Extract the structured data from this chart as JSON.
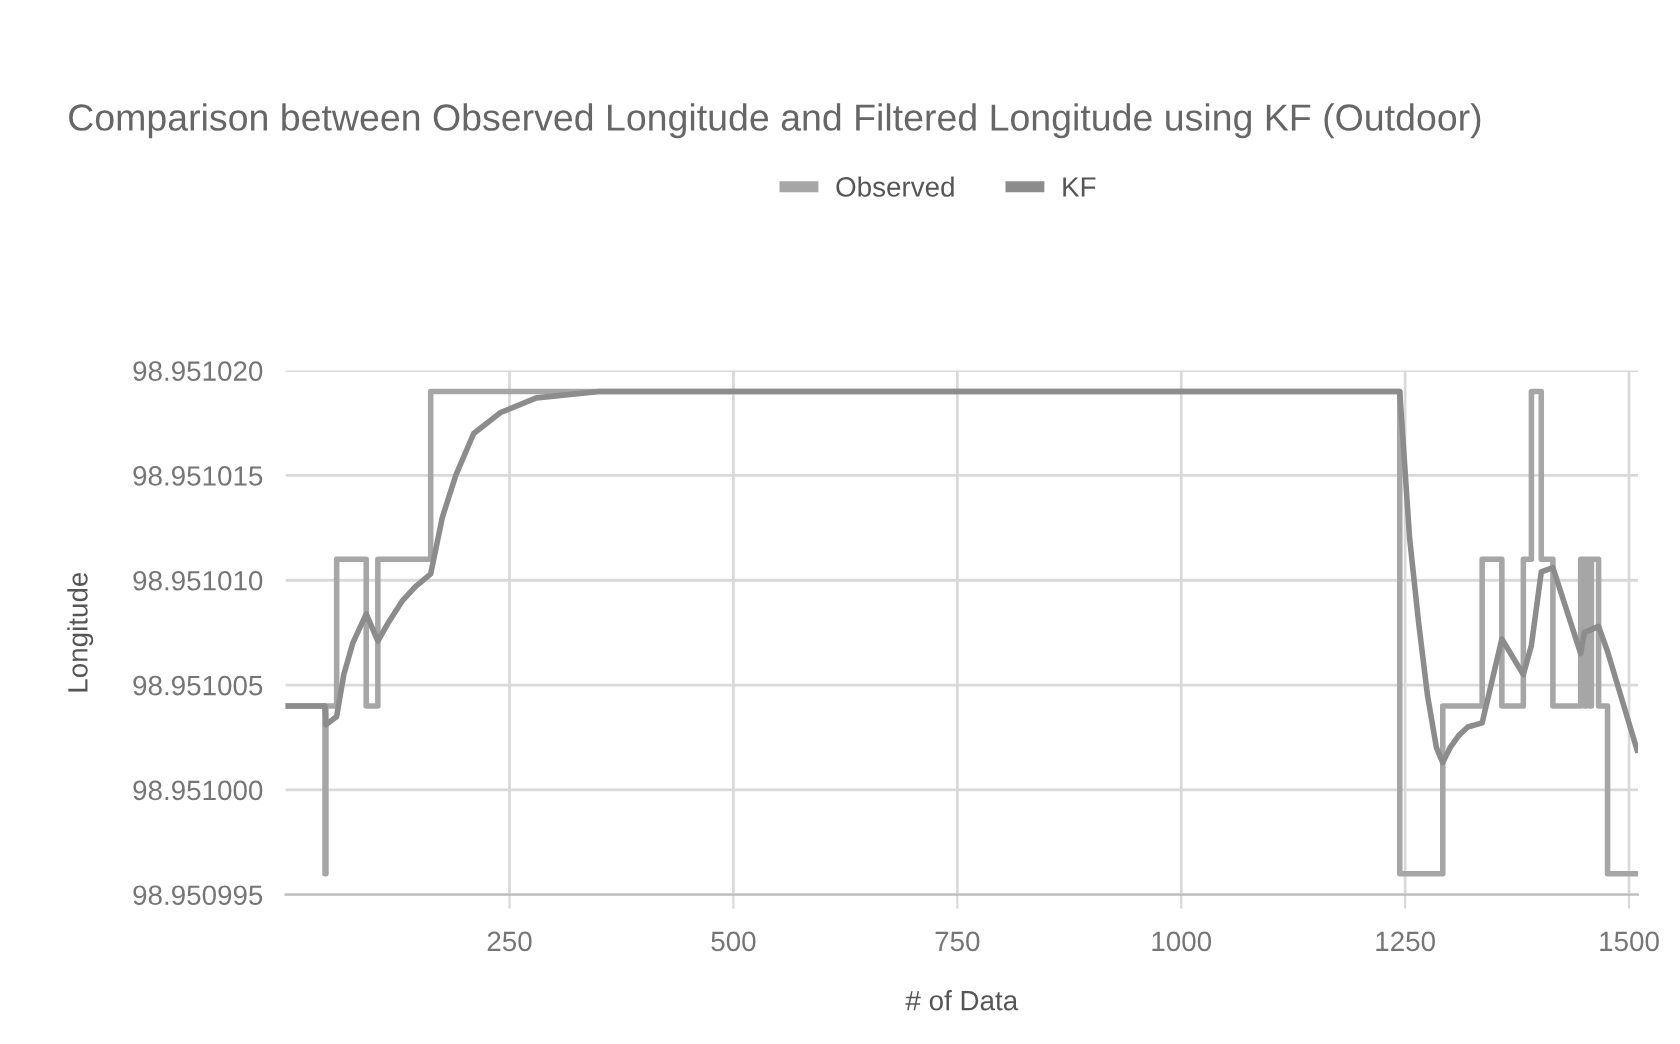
{
  "chart_data": {
    "type": "line",
    "title": "Comparison between Observed Longitude and Filtered Longitude using KF (Outdoor)",
    "xlabel": "# of Data",
    "ylabel": "Longitude",
    "series": [
      {
        "name": "Observed",
        "type": "step",
        "color": "#a6a6a6",
        "x": [
          0,
          44,
          45,
          57,
          90,
          103,
          162,
          1244,
          1292,
          1336,
          1358,
          1382,
          1391,
          1402,
          1415,
          1446,
          1450,
          1452,
          1456,
          1458,
          1466,
          1476,
          1510
        ],
        "values": [
          98.951004,
          98.950996,
          98.951004,
          98.951011,
          98.951004,
          98.951011,
          98.951019,
          98.950996,
          98.951004,
          98.951011,
          98.951004,
          98.951011,
          98.951019,
          98.951011,
          98.951004,
          98.951011,
          98.951004,
          98.951011,
          98.951004,
          98.951011,
          98.951004,
          98.950996,
          98.950996
        ]
      },
      {
        "name": "KF",
        "color": "#8c8c8c",
        "x": [
          0,
          44,
          45,
          57,
          65,
          75,
          90,
          103,
          115,
          130,
          145,
          162,
          175,
          190,
          210,
          240,
          280,
          350,
          1244,
          1255,
          1265,
          1275,
          1285,
          1292,
          1300,
          1310,
          1320,
          1336,
          1358,
          1382,
          1391,
          1402,
          1415,
          1446,
          1450,
          1466,
          1476,
          1509
        ],
        "values": [
          98.951004,
          98.951004,
          98.9510031,
          98.9510035,
          98.9510055,
          98.951007,
          98.9510084,
          98.9510071,
          98.951008,
          98.951009,
          98.9510097,
          98.9510103,
          98.951013,
          98.951015,
          98.951017,
          98.951018,
          98.9510187,
          98.951019,
          98.951019,
          98.951012,
          98.951008,
          98.9510045,
          98.951002,
          98.9510013,
          98.951002,
          98.9510026,
          98.951003,
          98.9510032,
          98.9510072,
          98.9510055,
          98.9510069,
          98.9510104,
          98.9510106,
          98.9510065,
          98.9510075,
          98.9510078,
          98.9510066,
          98.9510019
        ]
      }
    ],
    "xlim": [
      0,
      1510
    ],
    "xticks": [
      250,
      500,
      750,
      1000,
      1250,
      1500
    ],
    "ylim": [
      98.950995,
      98.95102
    ],
    "yticks": [
      {
        "value": 98.950995,
        "label": "98.950995"
      },
      {
        "value": 98.951,
        "label": "98.951000"
      },
      {
        "value": 98.951005,
        "label": "98.951005"
      },
      {
        "value": 98.95101,
        "label": "98.951010"
      },
      {
        "value": 98.951015,
        "label": "98.951015"
      },
      {
        "value": 98.95102,
        "label": "98.951020"
      }
    ],
    "grid": true,
    "legend": "top",
    "marker": "none",
    "line_style": "solid"
  }
}
